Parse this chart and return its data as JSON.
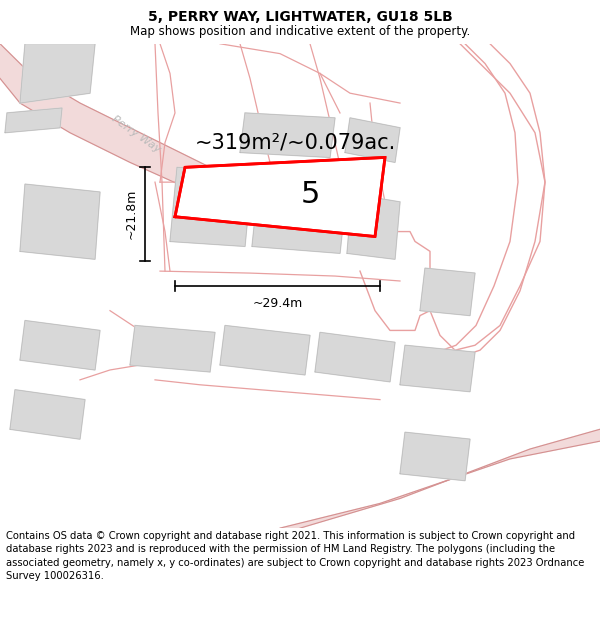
{
  "title": "5, PERRY WAY, LIGHTWATER, GU18 5LB",
  "subtitle": "Map shows position and indicative extent of the property.",
  "area_text": "~319m²/~0.079ac.",
  "property_number": "5",
  "dim_width": "~29.4m",
  "dim_height": "~21.8m",
  "footer": "Contains OS data © Crown copyright and database right 2021. This information is subject to Crown copyright and database rights 2023 and is reproduced with the permission of HM Land Registry. The polygons (including the associated geometry, namely x, y co-ordinates) are subject to Crown copyright and database rights 2023 Ordnance Survey 100026316.",
  "bg_color": "#ffffff",
  "map_bg": "#ffffff",
  "road_fill": "#f2dada",
  "building_color": "#d8d8d8",
  "boundary_color": "#e8a0a0",
  "road_edge": "#d49090",
  "highlight_color": "#ff0000",
  "title_fontsize": 10,
  "subtitle_fontsize": 8.5,
  "footer_fontsize": 7.2,
  "area_fontsize": 15,
  "perry_way_fontsize": 8,
  "dim_fontsize": 9
}
